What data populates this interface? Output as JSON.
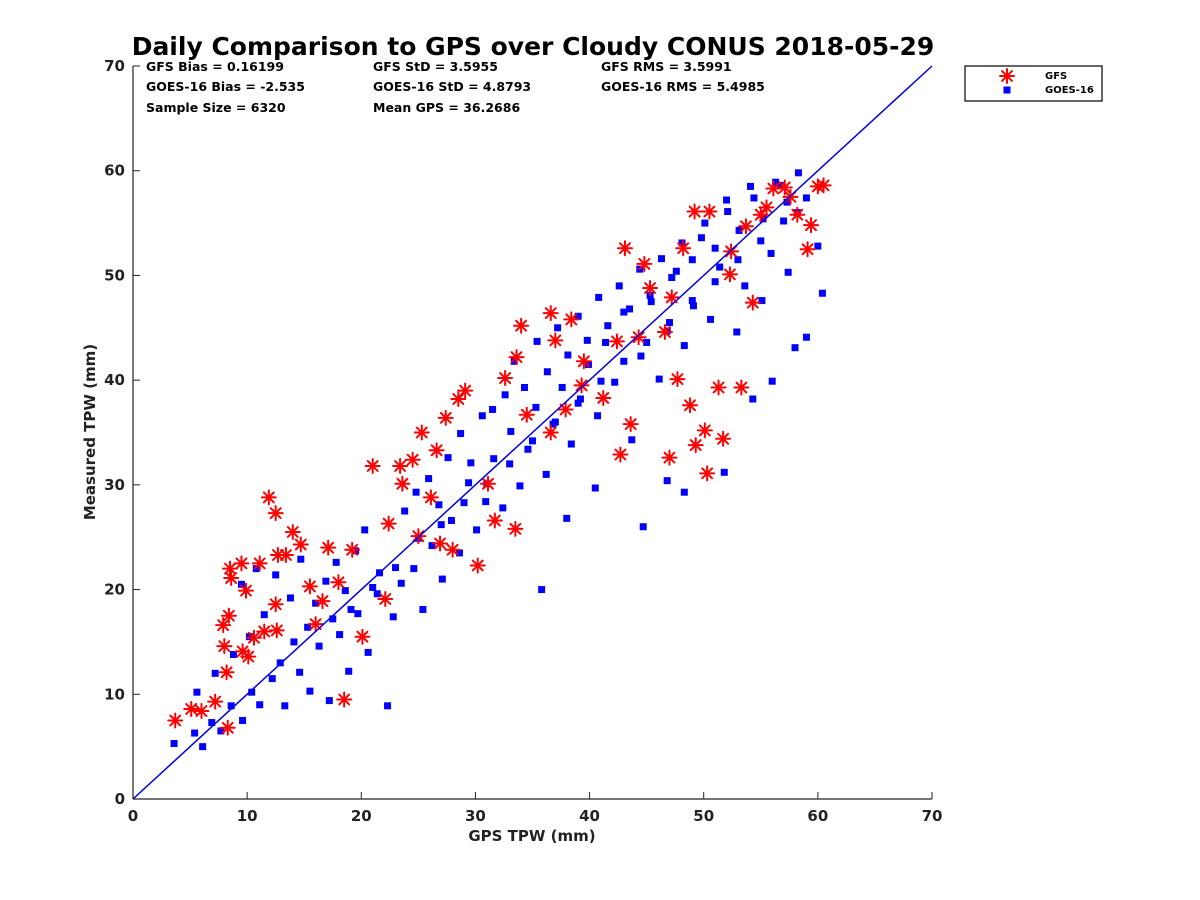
{
  "chart_data": {
    "type": "scatter",
    "title": "Daily Comparison to GPS over Cloudy CONUS 2018-05-29",
    "xlabel": "GPS TPW (mm)",
    "ylabel": "Measured TPW (mm)",
    "xlim": [
      0,
      70
    ],
    "ylim": [
      0,
      70
    ],
    "xticks": [
      "0",
      "10",
      "20",
      "30",
      "40",
      "50",
      "60",
      "70"
    ],
    "yticks": [
      "0",
      "10",
      "20",
      "30",
      "40",
      "50",
      "60",
      "70"
    ],
    "grid": false,
    "legend_position": "outside-top-right",
    "stats": [
      [
        "GFS Bias = 0.16199",
        "GFS StD = 3.5955",
        "GFS RMS = 3.5991"
      ],
      [
        "GOES-16 Bias = -2.535",
        "GOES-16 StD = 4.8793",
        "GOES-16 RMS = 5.4985"
      ],
      [
        "Sample Size = 6320",
        "Mean GPS = 36.2686",
        ""
      ]
    ],
    "reference_line": {
      "x": [
        0,
        70
      ],
      "y": [
        0,
        70
      ],
      "color": "#0000e6"
    },
    "series": [
      {
        "name": "GFS",
        "marker": "asterisk",
        "color": "#ff0000",
        "points": [
          [
            3.7,
            7.5
          ],
          [
            5.1,
            8.6
          ],
          [
            6.0,
            8.4
          ],
          [
            7.2,
            9.3
          ],
          [
            8.3,
            6.8
          ],
          [
            8.2,
            12.1
          ],
          [
            8.0,
            14.6
          ],
          [
            7.9,
            16.6
          ],
          [
            8.4,
            17.5
          ],
          [
            8.6,
            21.1
          ],
          [
            8.5,
            22.0
          ],
          [
            9.5,
            22.5
          ],
          [
            9.9,
            19.9
          ],
          [
            11.1,
            22.5
          ],
          [
            11.9,
            28.8
          ],
          [
            12.5,
            27.3
          ],
          [
            12.7,
            23.3
          ],
          [
            13.4,
            23.3
          ],
          [
            12.5,
            18.6
          ],
          [
            11.5,
            16.0
          ],
          [
            10.6,
            15.4
          ],
          [
            9.6,
            14.1
          ],
          [
            14.0,
            25.5
          ],
          [
            14.7,
            24.3
          ],
          [
            15.5,
            20.3
          ],
          [
            16.6,
            18.9
          ],
          [
            17.1,
            24.0
          ],
          [
            18.5,
            9.5
          ],
          [
            19.2,
            23.8
          ],
          [
            21.0,
            31.8
          ],
          [
            22.4,
            26.3
          ],
          [
            23.4,
            31.8
          ],
          [
            23.6,
            30.1
          ],
          [
            24.5,
            32.4
          ],
          [
            25.0,
            25.1
          ],
          [
            26.1,
            28.8
          ],
          [
            25.3,
            35.0
          ],
          [
            26.6,
            33.3
          ],
          [
            27.4,
            36.4
          ],
          [
            28.0,
            23.8
          ],
          [
            28.5,
            38.2
          ],
          [
            29.1,
            39.0
          ],
          [
            30.2,
            22.3
          ],
          [
            31.1,
            30.1
          ],
          [
            31.7,
            26.6
          ],
          [
            32.6,
            40.2
          ],
          [
            33.5,
            25.8
          ],
          [
            33.6,
            42.2
          ],
          [
            34.0,
            45.2
          ],
          [
            36.6,
            46.4
          ],
          [
            37.0,
            43.8
          ],
          [
            37.9,
            37.2
          ],
          [
            38.4,
            45.8
          ],
          [
            39.5,
            41.8
          ],
          [
            41.2,
            38.3
          ],
          [
            42.4,
            43.7
          ],
          [
            42.7,
            32.9
          ],
          [
            43.6,
            35.8
          ],
          [
            43.1,
            52.6
          ],
          [
            44.8,
            51.1
          ],
          [
            45.3,
            48.8
          ],
          [
            46.6,
            44.6
          ],
          [
            47.0,
            32.6
          ],
          [
            47.7,
            40.1
          ],
          [
            48.2,
            52.6
          ],
          [
            48.8,
            37.6
          ],
          [
            49.2,
            56.1
          ],
          [
            49.3,
            33.8
          ],
          [
            50.1,
            35.2
          ],
          [
            50.3,
            31.1
          ],
          [
            51.7,
            34.4
          ],
          [
            50.5,
            56.1
          ],
          [
            51.3,
            39.3
          ],
          [
            52.3,
            50.1
          ],
          [
            53.3,
            39.3
          ],
          [
            54.3,
            47.4
          ],
          [
            55.0,
            55.8
          ],
          [
            56.1,
            58.3
          ],
          [
            57.1,
            58.4
          ],
          [
            58.2,
            55.8
          ],
          [
            59.4,
            54.8
          ],
          [
            60.0,
            58.5
          ],
          [
            60.5,
            58.6
          ],
          [
            59.1,
            52.5
          ],
          [
            20.1,
            15.5
          ],
          [
            18.0,
            20.7
          ],
          [
            16.0,
            16.7
          ],
          [
            22.1,
            19.1
          ],
          [
            26.9,
            24.4
          ],
          [
            34.5,
            36.7
          ],
          [
            36.6,
            35.0
          ],
          [
            39.3,
            39.5
          ],
          [
            44.3,
            44.1
          ],
          [
            47.2,
            47.9
          ],
          [
            52.4,
            52.3
          ],
          [
            53.7,
            54.7
          ],
          [
            57.6,
            57.5
          ],
          [
            55.5,
            56.5
          ],
          [
            10.1,
            13.6
          ],
          [
            12.6,
            16.1
          ]
        ]
      },
      {
        "name": "GOES-16",
        "marker": "square",
        "color": "#0000ff",
        "points": [
          [
            3.6,
            5.3
          ],
          [
            5.4,
            6.3
          ],
          [
            6.1,
            5.0
          ],
          [
            6.9,
            7.3
          ],
          [
            7.7,
            6.5
          ],
          [
            8.6,
            8.9
          ],
          [
            9.6,
            7.5
          ],
          [
            10.4,
            10.2
          ],
          [
            11.1,
            9.0
          ],
          [
            12.2,
            11.5
          ],
          [
            13.3,
            8.9
          ],
          [
            14.6,
            12.1
          ],
          [
            15.5,
            10.3
          ],
          [
            16.3,
            14.6
          ],
          [
            17.2,
            9.4
          ],
          [
            18.1,
            15.7
          ],
          [
            18.9,
            12.2
          ],
          [
            19.7,
            17.7
          ],
          [
            20.6,
            14.0
          ],
          [
            21.4,
            19.6
          ],
          [
            22.3,
            8.9
          ],
          [
            23.5,
            20.6
          ],
          [
            24.6,
            22.0
          ],
          [
            25.4,
            18.1
          ],
          [
            26.2,
            24.2
          ],
          [
            27.1,
            21.0
          ],
          [
            27.9,
            26.6
          ],
          [
            28.6,
            23.5
          ],
          [
            29.4,
            30.2
          ],
          [
            30.1,
            25.7
          ],
          [
            30.9,
            28.4
          ],
          [
            31.6,
            32.5
          ],
          [
            32.4,
            27.8
          ],
          [
            33.1,
            35.1
          ],
          [
            33.9,
            29.9
          ],
          [
            34.6,
            33.4
          ],
          [
            35.3,
            37.4
          ],
          [
            36.2,
            31.0
          ],
          [
            36.8,
            35.8
          ],
          [
            37.6,
            39.3
          ],
          [
            38.4,
            33.9
          ],
          [
            39.2,
            38.2
          ],
          [
            39.9,
            41.5
          ],
          [
            40.7,
            36.6
          ],
          [
            41.4,
            43.6
          ],
          [
            42.2,
            39.8
          ],
          [
            43.0,
            46.5
          ],
          [
            43.7,
            34.3
          ],
          [
            44.5,
            42.3
          ],
          [
            45.3,
            48.1
          ],
          [
            46.1,
            40.1
          ],
          [
            46.8,
            44.7
          ],
          [
            47.6,
            50.4
          ],
          [
            48.3,
            43.3
          ],
          [
            49.1,
            47.1
          ],
          [
            49.8,
            53.6
          ],
          [
            50.6,
            45.8
          ],
          [
            51.4,
            50.8
          ],
          [
            52.1,
            56.1
          ],
          [
            52.9,
            44.6
          ],
          [
            53.6,
            49.0
          ],
          [
            54.4,
            57.4
          ],
          [
            55.1,
            47.6
          ],
          [
            55.9,
            52.1
          ],
          [
            56.7,
            58.6
          ],
          [
            57.4,
            50.3
          ],
          [
            58.2,
            56.0
          ],
          [
            59.0,
            44.1
          ],
          [
            60.0,
            52.8
          ],
          [
            60.4,
            48.3
          ],
          [
            5.6,
            10.2
          ],
          [
            7.2,
            12.0
          ],
          [
            8.8,
            13.8
          ],
          [
            10.2,
            15.5
          ],
          [
            11.5,
            17.6
          ],
          [
            12.5,
            21.4
          ],
          [
            13.8,
            19.2
          ],
          [
            14.7,
            22.9
          ],
          [
            16.0,
            18.7
          ],
          [
            16.9,
            20.8
          ],
          [
            17.8,
            22.6
          ],
          [
            18.6,
            19.9
          ],
          [
            19.5,
            23.7
          ],
          [
            20.3,
            25.7
          ],
          [
            21.6,
            21.6
          ],
          [
            22.8,
            17.4
          ],
          [
            23.8,
            27.5
          ],
          [
            24.8,
            29.3
          ],
          [
            25.9,
            30.6
          ],
          [
            26.8,
            28.1
          ],
          [
            27.6,
            32.6
          ],
          [
            28.7,
            34.9
          ],
          [
            29.6,
            32.1
          ],
          [
            30.6,
            36.6
          ],
          [
            31.5,
            37.2
          ],
          [
            32.6,
            38.6
          ],
          [
            33.4,
            41.8
          ],
          [
            34.3,
            39.3
          ],
          [
            35.4,
            43.7
          ],
          [
            36.3,
            40.8
          ],
          [
            37.2,
            45.0
          ],
          [
            38.1,
            42.4
          ],
          [
            39.0,
            46.1
          ],
          [
            39.8,
            43.8
          ],
          [
            40.8,
            47.9
          ],
          [
            41.6,
            45.2
          ],
          [
            42.6,
            49.0
          ],
          [
            43.5,
            46.8
          ],
          [
            44.4,
            50.6
          ],
          [
            45.4,
            47.5
          ],
          [
            46.3,
            51.6
          ],
          [
            47.2,
            49.8
          ],
          [
            48.1,
            53.1
          ],
          [
            49.0,
            51.5
          ],
          [
            50.1,
            55.0
          ],
          [
            51.0,
            52.6
          ],
          [
            52.0,
            57.2
          ],
          [
            53.1,
            54.3
          ],
          [
            54.1,
            58.5
          ],
          [
            55.2,
            55.4
          ],
          [
            56.3,
            58.9
          ],
          [
            57.3,
            57.0
          ],
          [
            58.3,
            59.8
          ],
          [
            12.9,
            13.0
          ],
          [
            14.1,
            15.0
          ],
          [
            15.3,
            16.4
          ],
          [
            17.5,
            17.2
          ],
          [
            19.1,
            18.1
          ],
          [
            21.0,
            20.2
          ],
          [
            23.0,
            22.1
          ],
          [
            25.0,
            24.9
          ],
          [
            27.0,
            26.2
          ],
          [
            29.0,
            28.3
          ],
          [
            31.0,
            30.1
          ],
          [
            33.0,
            32.0
          ],
          [
            35.0,
            34.2
          ],
          [
            37.0,
            36.0
          ],
          [
            39.0,
            37.8
          ],
          [
            41.0,
            39.9
          ],
          [
            43.0,
            41.8
          ],
          [
            45.0,
            43.6
          ],
          [
            47.0,
            45.5
          ],
          [
            49.0,
            47.6
          ],
          [
            51.0,
            49.4
          ],
          [
            53.0,
            51.5
          ],
          [
            55.0,
            53.3
          ],
          [
            57.0,
            55.2
          ],
          [
            59.0,
            57.4
          ],
          [
            35.8,
            20.0
          ],
          [
            38.0,
            26.8
          ],
          [
            40.5,
            29.7
          ],
          [
            44.7,
            26.0
          ],
          [
            46.8,
            30.4
          ],
          [
            48.3,
            29.3
          ],
          [
            51.8,
            31.2
          ],
          [
            54.3,
            38.2
          ],
          [
            56.0,
            39.9
          ],
          [
            58.0,
            43.1
          ],
          [
            10.8,
            22.0
          ],
          [
            9.5,
            20.5
          ]
        ]
      }
    ]
  }
}
